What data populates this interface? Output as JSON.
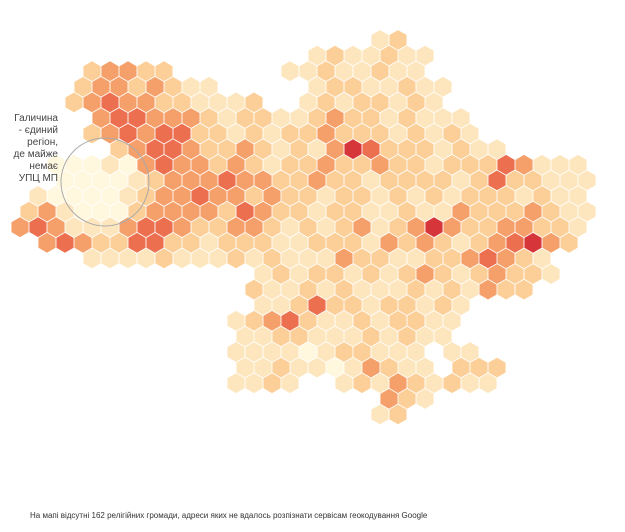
{
  "map": {
    "annotation": [
      "Галичина",
      "- єдиний",
      "регіон,",
      "де майже",
      "немає",
      "УПЦ МП"
    ],
    "footnote": "На мапі відсутні 162 релігійних громади, адреси яких не вдалось розпізнати сервісам геокодування Google",
    "colors": [
      "#fff7de",
      "#fde6bd",
      "#fbcf97",
      "#f5a06a",
      "#ec6f4f",
      "#d6363a"
    ],
    "rows": [
      [
        null,
        null,
        null,
        null,
        null,
        null,
        null,
        null,
        null,
        null,
        null,
        null,
        null,
        null,
        null,
        null,
        null,
        null,
        null,
        null,
        1,
        2,
        null,
        null,
        null,
        null,
        null,
        null,
        null,
        null,
        null,
        null,
        null
      ],
      [
        null,
        null,
        null,
        null,
        null,
        null,
        null,
        null,
        null,
        null,
        null,
        null,
        null,
        null,
        null,
        null,
        1,
        2,
        1,
        1,
        2,
        1,
        1,
        null,
        null,
        null,
        null,
        null,
        null,
        null,
        null,
        null,
        null
      ],
      [
        null,
        null,
        null,
        null,
        2,
        3,
        3,
        2,
        2,
        null,
        null,
        null,
        null,
        null,
        null,
        1,
        1,
        2,
        1,
        1,
        2,
        1,
        1,
        null,
        null,
        null,
        null,
        null,
        null,
        null,
        null,
        null,
        null
      ],
      [
        null,
        null,
        null,
        2,
        3,
        3,
        2,
        3,
        2,
        1,
        1,
        null,
        null,
        null,
        null,
        null,
        1,
        2,
        2,
        1,
        1,
        2,
        1,
        1,
        null,
        null,
        null,
        null,
        null,
        null,
        null,
        null,
        null
      ],
      [
        null,
        null,
        null,
        2,
        3,
        4,
        3,
        3,
        2,
        2,
        1,
        1,
        1,
        2,
        null,
        null,
        1,
        2,
        1,
        2,
        2,
        1,
        2,
        1,
        null,
        null,
        null,
        null,
        null,
        null,
        null,
        null,
        null
      ],
      [
        null,
        null,
        null,
        null,
        3,
        4,
        4,
        3,
        3,
        3,
        2,
        1,
        2,
        2,
        1,
        1,
        2,
        3,
        2,
        2,
        1,
        2,
        1,
        1,
        1,
        null,
        null,
        null,
        null,
        null,
        null,
        null,
        null
      ],
      [
        null,
        null,
        null,
        null,
        2,
        3,
        4,
        3,
        4,
        4,
        2,
        2,
        1,
        2,
        1,
        2,
        2,
        3,
        2,
        2,
        2,
        1,
        2,
        1,
        2,
        1,
        null,
        null,
        null,
        null,
        null,
        null,
        null
      ],
      [
        null,
        null,
        null,
        null,
        null,
        2,
        3,
        4,
        4,
        3,
        2,
        2,
        3,
        2,
        1,
        2,
        1,
        3,
        5,
        4,
        2,
        2,
        2,
        1,
        2,
        1,
        1,
        null,
        null,
        null,
        null,
        null,
        null
      ],
      [
        null,
        null,
        0,
        0,
        0,
        1,
        0,
        3,
        4,
        3,
        3,
        2,
        3,
        2,
        1,
        2,
        2,
        3,
        2,
        2,
        3,
        2,
        2,
        1,
        2,
        2,
        2,
        4,
        3,
        1,
        1,
        1,
        null
      ],
      [
        null,
        null,
        0,
        0,
        0,
        0,
        1,
        2,
        3,
        3,
        3,
        4,
        3,
        3,
        2,
        2,
        3,
        2,
        2,
        1,
        2,
        2,
        2,
        2,
        1,
        2,
        4,
        2,
        2,
        1,
        1,
        1,
        null
      ],
      [
        null,
        1,
        0,
        0,
        0,
        0,
        1,
        2,
        3,
        3,
        4,
        3,
        3,
        2,
        3,
        2,
        2,
        1,
        2,
        2,
        1,
        2,
        1,
        2,
        1,
        2,
        2,
        2,
        1,
        2,
        1,
        1,
        null
      ],
      [
        2,
        3,
        1,
        0,
        0,
        0,
        2,
        3,
        3,
        3,
        3,
        2,
        4,
        3,
        2,
        2,
        1,
        2,
        2,
        1,
        1,
        2,
        1,
        1,
        3,
        2,
        2,
        2,
        3,
        2,
        1,
        1,
        null
      ],
      [
        3,
        4,
        3,
        1,
        1,
        1,
        3,
        4,
        4,
        3,
        2,
        2,
        3,
        3,
        2,
        1,
        2,
        1,
        2,
        3,
        1,
        2,
        3,
        5,
        3,
        2,
        2,
        3,
        3,
        2,
        2,
        1,
        null
      ],
      [
        null,
        3,
        4,
        3,
        2,
        2,
        4,
        4,
        2,
        2,
        1,
        2,
        2,
        2,
        1,
        1,
        2,
        2,
        2,
        1,
        3,
        2,
        3,
        2,
        1,
        2,
        3,
        4,
        5,
        3,
        2,
        null,
        null
      ],
      [
        null,
        null,
        null,
        null,
        1,
        1,
        1,
        1,
        2,
        1,
        1,
        1,
        2,
        1,
        2,
        1,
        1,
        1,
        3,
        2,
        2,
        1,
        1,
        2,
        2,
        3,
        4,
        3,
        2,
        1,
        null,
        null,
        null
      ],
      [
        null,
        null,
        null,
        null,
        null,
        null,
        null,
        null,
        null,
        null,
        null,
        null,
        null,
        1,
        2,
        1,
        2,
        2,
        1,
        2,
        1,
        2,
        3,
        2,
        1,
        2,
        3,
        2,
        2,
        1,
        null,
        null,
        null
      ],
      [
        null,
        null,
        null,
        null,
        null,
        null,
        null,
        null,
        null,
        null,
        null,
        null,
        null,
        2,
        1,
        1,
        2,
        1,
        2,
        1,
        1,
        1,
        2,
        1,
        2,
        1,
        3,
        2,
        2,
        null,
        null,
        null,
        null
      ],
      [
        null,
        null,
        null,
        null,
        null,
        null,
        null,
        null,
        null,
        null,
        null,
        null,
        null,
        1,
        1,
        2,
        4,
        2,
        2,
        1,
        2,
        2,
        1,
        2,
        1,
        null,
        null,
        null,
        null,
        null,
        null,
        null,
        null
      ],
      [
        null,
        null,
        null,
        null,
        null,
        null,
        null,
        null,
        null,
        null,
        null,
        null,
        1,
        2,
        3,
        4,
        2,
        1,
        1,
        2,
        1,
        2,
        2,
        1,
        1,
        null,
        null,
        null,
        null,
        null,
        null,
        null,
        null
      ],
      [
        null,
        null,
        null,
        null,
        null,
        null,
        null,
        null,
        null,
        null,
        null,
        null,
        1,
        1,
        2,
        2,
        1,
        1,
        1,
        2,
        1,
        2,
        1,
        1,
        null,
        null,
        null,
        null,
        null,
        null,
        null,
        null,
        null
      ],
      [
        null,
        null,
        null,
        null,
        null,
        null,
        null,
        null,
        null,
        null,
        null,
        null,
        1,
        1,
        1,
        1,
        0,
        1,
        2,
        2,
        1,
        1,
        1,
        null,
        1,
        1,
        null,
        null,
        null,
        null,
        null,
        null,
        null
      ],
      [
        null,
        null,
        null,
        null,
        null,
        null,
        null,
        null,
        null,
        null,
        null,
        null,
        1,
        1,
        2,
        1,
        1,
        0,
        1,
        3,
        2,
        1,
        1,
        null,
        2,
        2,
        2,
        null,
        null,
        null,
        null,
        null,
        null
      ],
      [
        null,
        null,
        null,
        null,
        null,
        null,
        null,
        null,
        null,
        null,
        null,
        null,
        1,
        1,
        2,
        1,
        null,
        null,
        1,
        2,
        1,
        3,
        2,
        1,
        2,
        1,
        1,
        null,
        null,
        null,
        null,
        null,
        null
      ],
      [
        null,
        null,
        null,
        null,
        null,
        null,
        null,
        null,
        null,
        null,
        null,
        null,
        null,
        null,
        null,
        null,
        null,
        null,
        null,
        null,
        3,
        2,
        1,
        null,
        null,
        null,
        null,
        null,
        null,
        null,
        null,
        null,
        null
      ],
      [
        null,
        null,
        null,
        null,
        null,
        null,
        null,
        null,
        null,
        null,
        null,
        null,
        null,
        null,
        null,
        null,
        null,
        null,
        null,
        null,
        1,
        2,
        null,
        null,
        null,
        null,
        null,
        null,
        null,
        null,
        null,
        null,
        null
      ]
    ]
  }
}
